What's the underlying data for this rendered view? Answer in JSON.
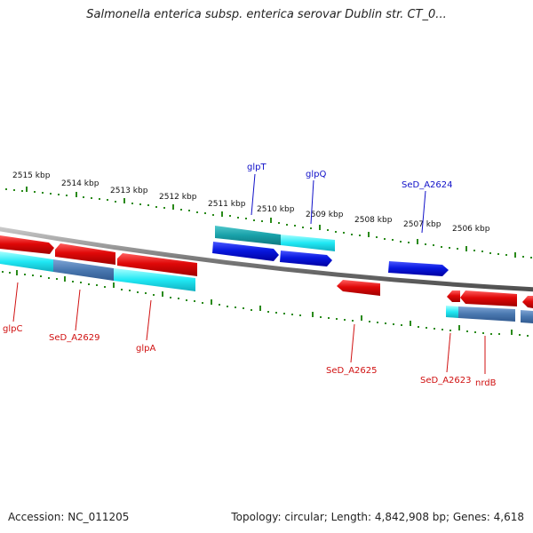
{
  "title": "Salmonella enterica subsp. enterica serovar Dublin str. CT_0...",
  "footer": {
    "accession": "Accession: NC_011205",
    "topology": "Topology: circular; Length: 4,842,908 bp; Genes: 4,618"
  },
  "scale": {
    "ticks": [
      "2515 kbp",
      "2514 kbp",
      "2513 kbp",
      "2512 kbp",
      "2511 kbp",
      "2510 kbp",
      "2509 kbp",
      "2508 kbp",
      "2507 kbp",
      "2506 kbp"
    ]
  },
  "genes": {
    "top": [
      "glpT",
      "glpQ",
      "SeD_A2624"
    ],
    "bottom": [
      "glpC",
      "SeD_A2629",
      "glpA",
      "SeD_A2625",
      "SeD_A2623",
      "nrdB"
    ]
  },
  "colors": {
    "forward_gene": "#1020d8",
    "reverse_gene": "#e01010",
    "cds_cyan": "#20e8f0",
    "cds_teal": "#20a8b0",
    "cds_steel": "#4a80b8",
    "tick_green": "#2a8a1a",
    "backbone": "#808080"
  }
}
